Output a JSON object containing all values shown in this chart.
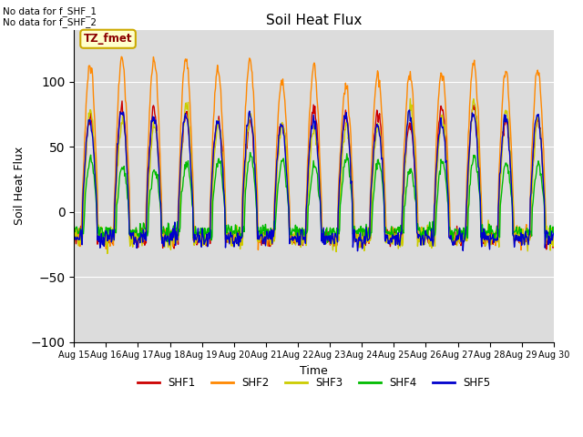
{
  "title": "Soil Heat Flux",
  "xlabel": "Time",
  "ylabel": "Soil Heat Flux",
  "annotations": [
    "No data for f_SHF_1",
    "No data for f_SHF_2"
  ],
  "legend_label": "TZ_fmet",
  "ylim": [
    -100,
    140
  ],
  "series_names": [
    "SHF1",
    "SHF2",
    "SHF3",
    "SHF4",
    "SHF5"
  ],
  "series_colors": [
    "#cc0000",
    "#ff8800",
    "#cccc00",
    "#00bb00",
    "#0000cc"
  ],
  "bg_color": "#dcdcdc",
  "x_ticks": [
    "Aug 15",
    "Aug 16",
    "Aug 17",
    "Aug 18",
    "Aug 19",
    "Aug 20",
    "Aug 21",
    "Aug 22",
    "Aug 23",
    "Aug 24",
    "Aug 25",
    "Aug 26",
    "Aug 27",
    "Aug 28",
    "Aug 29",
    "Aug 30"
  ],
  "n_points": 720,
  "days": 15
}
